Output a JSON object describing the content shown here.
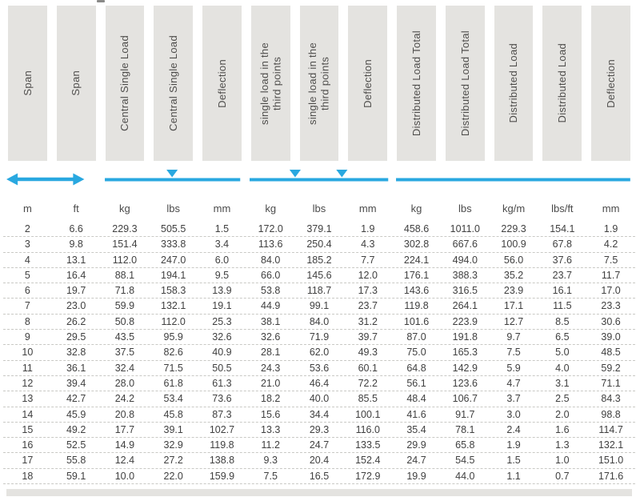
{
  "colors": {
    "accent": "#29a8e0",
    "header_bg": "#e4e3e0",
    "header_text": "#4f4e4c",
    "data_text": "#404040"
  },
  "icons": {
    "span": "double-headed-arrow",
    "central": "beam-line-with-center-point-load-triangle",
    "third": "beam-line-with-two-third-point-load-triangles",
    "distributed": "beam-line-uniform-load"
  },
  "table": {
    "columns": [
      {
        "label": "Span",
        "unit": "m",
        "group": "span"
      },
      {
        "label": "Span",
        "unit": "ft",
        "group": "span"
      },
      {
        "label": "Central Single Load",
        "unit": "kg",
        "group": "central"
      },
      {
        "label": "Central Single Load",
        "unit": "lbs",
        "group": "central"
      },
      {
        "label": "Deflection",
        "unit": "mm",
        "group": "central"
      },
      {
        "label": "single load in the\nthird points",
        "unit": "kg",
        "group": "third"
      },
      {
        "label": "single load in the\nthird points",
        "unit": "lbs",
        "group": "third"
      },
      {
        "label": "Deflection",
        "unit": "mm",
        "group": "third"
      },
      {
        "label": "Distributed Load Total",
        "unit": "kg",
        "group": "distributed"
      },
      {
        "label": "Distributed Load Total",
        "unit": "lbs",
        "group": "distributed"
      },
      {
        "label": "Distributed Load",
        "unit": "kg/m",
        "group": "distributed"
      },
      {
        "label": "Distributed Load",
        "unit": "lbs/ft",
        "group": "distributed"
      },
      {
        "label": "Deflection",
        "unit": "mm",
        "group": "distributed"
      }
    ],
    "rows": [
      [
        "2",
        "6.6",
        "229.3",
        "505.5",
        "1.5",
        "172.0",
        "379.1",
        "1.9",
        "458.6",
        "1011.0",
        "229.3",
        "154.1",
        "1.9"
      ],
      [
        "3",
        "9.8",
        "151.4",
        "333.8",
        "3.4",
        "113.6",
        "250.4",
        "4.3",
        "302.8",
        "667.6",
        "100.9",
        "67.8",
        "4.2"
      ],
      [
        "4",
        "13.1",
        "112.0",
        "247.0",
        "6.0",
        "84.0",
        "185.2",
        "7.7",
        "224.1",
        "494.0",
        "56.0",
        "37.6",
        "7.5"
      ],
      [
        "5",
        "16.4",
        "88.1",
        "194.1",
        "9.5",
        "66.0",
        "145.6",
        "12.0",
        "176.1",
        "388.3",
        "35.2",
        "23.7",
        "11.7"
      ],
      [
        "6",
        "19.7",
        "71.8",
        "158.3",
        "13.9",
        "53.8",
        "118.7",
        "17.3",
        "143.6",
        "316.5",
        "23.9",
        "16.1",
        "17.0"
      ],
      [
        "7",
        "23.0",
        "59.9",
        "132.1",
        "19.1",
        "44.9",
        "99.1",
        "23.7",
        "119.8",
        "264.1",
        "17.1",
        "11.5",
        "23.3"
      ],
      [
        "8",
        "26.2",
        "50.8",
        "112.0",
        "25.3",
        "38.1",
        "84.0",
        "31.2",
        "101.6",
        "223.9",
        "12.7",
        "8.5",
        "30.6"
      ],
      [
        "9",
        "29.5",
        "43.5",
        "95.9",
        "32.6",
        "32.6",
        "71.9",
        "39.7",
        "87.0",
        "191.8",
        "9.7",
        "6.5",
        "39.0"
      ],
      [
        "10",
        "32.8",
        "37.5",
        "82.6",
        "40.9",
        "28.1",
        "62.0",
        "49.3",
        "75.0",
        "165.3",
        "7.5",
        "5.0",
        "48.5"
      ],
      [
        "11",
        "36.1",
        "32.4",
        "71.5",
        "50.5",
        "24.3",
        "53.6",
        "60.1",
        "64.8",
        "142.9",
        "5.9",
        "4.0",
        "59.2"
      ],
      [
        "12",
        "39.4",
        "28.0",
        "61.8",
        "61.3",
        "21.0",
        "46.4",
        "72.2",
        "56.1",
        "123.6",
        "4.7",
        "3.1",
        "71.1"
      ],
      [
        "13",
        "42.7",
        "24.2",
        "53.4",
        "73.6",
        "18.2",
        "40.0",
        "85.5",
        "48.4",
        "106.7",
        "3.7",
        "2.5",
        "84.3"
      ],
      [
        "14",
        "45.9",
        "20.8",
        "45.8",
        "87.3",
        "15.6",
        "34.4",
        "100.1",
        "41.6",
        "91.7",
        "3.0",
        "2.0",
        "98.8"
      ],
      [
        "15",
        "49.2",
        "17.7",
        "39.1",
        "102.7",
        "13.3",
        "29.3",
        "116.0",
        "35.4",
        "78.1",
        "2.4",
        "1.6",
        "114.7"
      ],
      [
        "16",
        "52.5",
        "14.9",
        "32.9",
        "119.8",
        "11.2",
        "24.7",
        "133.5",
        "29.9",
        "65.8",
        "1.9",
        "1.3",
        "132.1"
      ],
      [
        "17",
        "55.8",
        "12.4",
        "27.2",
        "138.8",
        "9.3",
        "20.4",
        "152.4",
        "24.7",
        "54.5",
        "1.5",
        "1.0",
        "151.0"
      ],
      [
        "18",
        "59.1",
        "10.0",
        "22.0",
        "159.9",
        "7.5",
        "16.5",
        "172.9",
        "19.9",
        "44.0",
        "1.1",
        "0.7",
        "171.6"
      ]
    ]
  }
}
